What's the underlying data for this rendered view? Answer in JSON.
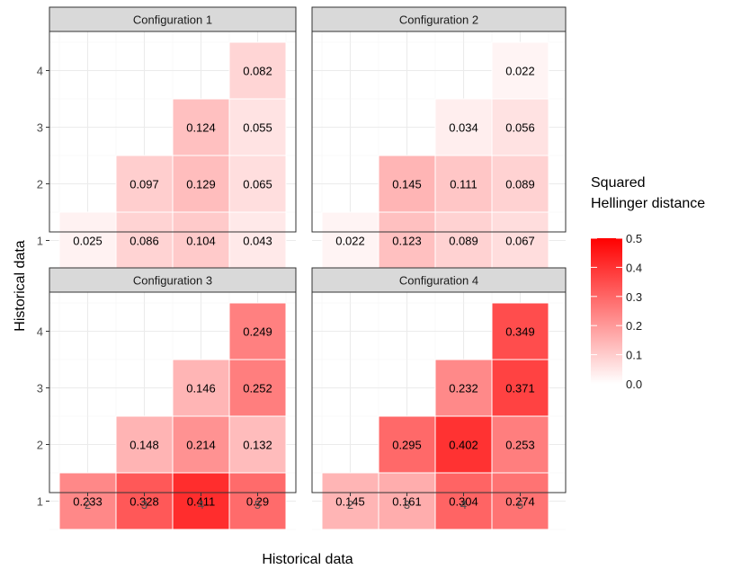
{
  "chart_data": {
    "type": "heatmap",
    "xlabel": "Historical data",
    "ylabel": "Historical data",
    "x_ticks": [
      "2",
      "3",
      "4",
      "5"
    ],
    "y_ticks": [
      "1",
      "2",
      "3",
      "4"
    ],
    "legend": {
      "title_lines": [
        "Squared",
        "Hellinger distance"
      ],
      "ticks": [
        "0.0",
        "0.1",
        "0.2",
        "0.3",
        "0.4",
        "0.5"
      ],
      "range": [
        0,
        0.5
      ],
      "color_low": "#ffffff",
      "color_high": "#ff0000",
      "placement": "right"
    },
    "grid": true,
    "panels": [
      {
        "title": "Configuration 1",
        "cells": [
          {
            "x": "2",
            "y": "1",
            "value": 0.025,
            "label": "0.025"
          },
          {
            "x": "3",
            "y": "1",
            "value": 0.086,
            "label": "0.086"
          },
          {
            "x": "4",
            "y": "1",
            "value": 0.104,
            "label": "0.104"
          },
          {
            "x": "5",
            "y": "1",
            "value": 0.043,
            "label": "0.043"
          },
          {
            "x": "3",
            "y": "2",
            "value": 0.097,
            "label": "0.097"
          },
          {
            "x": "4",
            "y": "2",
            "value": 0.129,
            "label": "0.129"
          },
          {
            "x": "5",
            "y": "2",
            "value": 0.065,
            "label": "0.065"
          },
          {
            "x": "4",
            "y": "3",
            "value": 0.124,
            "label": "0.124"
          },
          {
            "x": "5",
            "y": "3",
            "value": 0.055,
            "label": "0.055"
          },
          {
            "x": "5",
            "y": "4",
            "value": 0.082,
            "label": "0.082"
          }
        ]
      },
      {
        "title": "Configuration 2",
        "cells": [
          {
            "x": "2",
            "y": "1",
            "value": 0.022,
            "label": "0.022"
          },
          {
            "x": "3",
            "y": "1",
            "value": 0.123,
            "label": "0.123"
          },
          {
            "x": "4",
            "y": "1",
            "value": 0.089,
            "label": "0.089"
          },
          {
            "x": "5",
            "y": "1",
            "value": 0.067,
            "label": "0.067"
          },
          {
            "x": "3",
            "y": "2",
            "value": 0.145,
            "label": "0.145"
          },
          {
            "x": "4",
            "y": "2",
            "value": 0.111,
            "label": "0.111"
          },
          {
            "x": "5",
            "y": "2",
            "value": 0.089,
            "label": "0.089"
          },
          {
            "x": "4",
            "y": "3",
            "value": 0.034,
            "label": "0.034"
          },
          {
            "x": "5",
            "y": "3",
            "value": 0.056,
            "label": "0.056"
          },
          {
            "x": "5",
            "y": "4",
            "value": 0.022,
            "label": "0.022"
          }
        ]
      },
      {
        "title": "Configuration 3",
        "cells": [
          {
            "x": "2",
            "y": "1",
            "value": 0.233,
            "label": "0.233"
          },
          {
            "x": "3",
            "y": "1",
            "value": 0.328,
            "label": "0.328"
          },
          {
            "x": "4",
            "y": "1",
            "value": 0.411,
            "label": "0.411"
          },
          {
            "x": "5",
            "y": "1",
            "value": 0.29,
            "label": "0.29"
          },
          {
            "x": "3",
            "y": "2",
            "value": 0.148,
            "label": "0.148"
          },
          {
            "x": "4",
            "y": "2",
            "value": 0.214,
            "label": "0.214"
          },
          {
            "x": "5",
            "y": "2",
            "value": 0.132,
            "label": "0.132"
          },
          {
            "x": "4",
            "y": "3",
            "value": 0.146,
            "label": "0.146"
          },
          {
            "x": "5",
            "y": "3",
            "value": 0.252,
            "label": "0.252"
          },
          {
            "x": "5",
            "y": "4",
            "value": 0.249,
            "label": "0.249"
          }
        ]
      },
      {
        "title": "Configuration 4",
        "cells": [
          {
            "x": "2",
            "y": "1",
            "value": 0.145,
            "label": "0.145"
          },
          {
            "x": "3",
            "y": "1",
            "value": 0.161,
            "label": "0.161"
          },
          {
            "x": "4",
            "y": "1",
            "value": 0.304,
            "label": "0.304"
          },
          {
            "x": "5",
            "y": "1",
            "value": 0.274,
            "label": "0.274"
          },
          {
            "x": "3",
            "y": "2",
            "value": 0.295,
            "label": "0.295"
          },
          {
            "x": "4",
            "y": "2",
            "value": 0.402,
            "label": "0.402"
          },
          {
            "x": "5",
            "y": "2",
            "value": 0.253,
            "label": "0.253"
          },
          {
            "x": "4",
            "y": "3",
            "value": 0.232,
            "label": "0.232"
          },
          {
            "x": "5",
            "y": "3",
            "value": 0.371,
            "label": "0.371"
          },
          {
            "x": "5",
            "y": "4",
            "value": 0.349,
            "label": "0.349"
          }
        ]
      }
    ]
  }
}
